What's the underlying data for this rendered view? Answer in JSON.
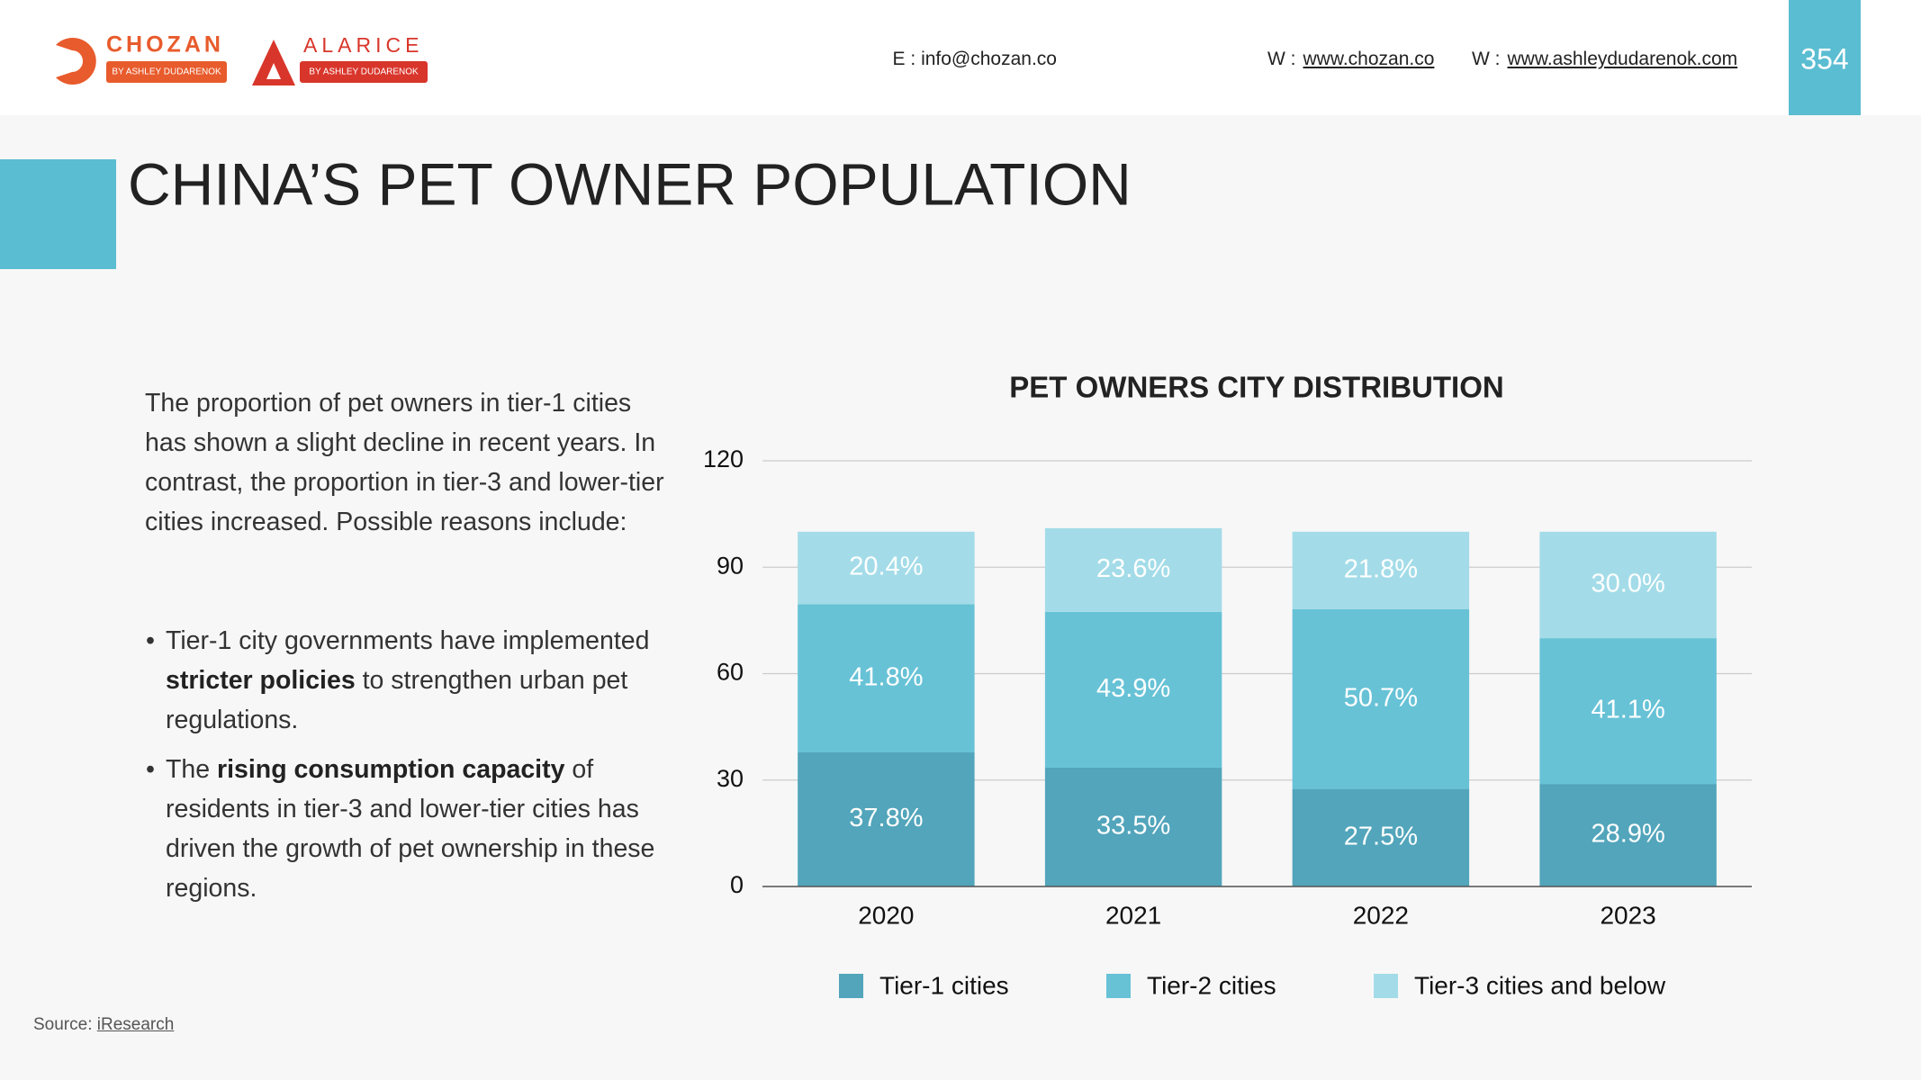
{
  "header": {
    "logos": [
      {
        "name": "CHOZAN",
        "tagline": "BY ASHLEY DUDARENOK"
      },
      {
        "name": "ALARICE",
        "tagline": "BY ASHLEY DUDARENOK"
      }
    ],
    "contacts": [
      {
        "label": "E :",
        "value": "info@chozan.co"
      },
      {
        "label": "W :",
        "value": "www.chozan.co"
      },
      {
        "label": "W :",
        "value": "www.ashleydudarenok.com"
      }
    ],
    "page_number": "354"
  },
  "title": "CHINA’S PET OWNER POPULATION",
  "body": {
    "intro": "The proportion of pet owners in tier-1 cities has shown a slight decline in recent years. In contrast, the proportion in tier-3 and lower-tier cities increased. Possible reasons include:",
    "bullets": [
      [
        {
          "text": "Tier-1 city governments have implemented "
        },
        {
          "text": "stricter policies",
          "bold": true
        },
        {
          "text": " to strengthen urban pet regulations."
        }
      ],
      [
        {
          "text": "The "
        },
        {
          "text": "rising consumption capacity",
          "bold": true
        },
        {
          "text": " of residents in tier-3 and lower-tier cities has driven the growth of pet ownership in these regions."
        }
      ]
    ]
  },
  "source": {
    "label": "Source:",
    "value": "iResearch"
  },
  "chart_data": {
    "type": "stacked_bar",
    "title": "PET OWNERS CITY DISTRIBUTION",
    "categories": [
      "2020",
      "2021",
      "2022",
      "2023"
    ],
    "series": [
      {
        "name": "Tier-1 cities",
        "color": "#52a5bb",
        "values": [
          37.8,
          33.5,
          27.5,
          28.9
        ],
        "value_labels": [
          "37.8%",
          "33.5%",
          "27.5%",
          "28.9%"
        ]
      },
      {
        "name": "Tier-2 cities",
        "color": "#67c2d6",
        "values": [
          41.8,
          43.9,
          50.7,
          41.1
        ],
        "value_labels": [
          "41.8%",
          "43.9%",
          "50.7%",
          "41.1%"
        ]
      },
      {
        "name": "Tier-3 cities and below",
        "color": "#a3dce8",
        "values": [
          20.4,
          23.6,
          21.8,
          30.0
        ],
        "value_labels": [
          "20.4%",
          "23.6%",
          "21.8%",
          "30.0%"
        ]
      }
    ],
    "ylim": [
      0,
      120
    ],
    "yticks": [
      0,
      30,
      60,
      90,
      120
    ],
    "grid": true,
    "legend": "bottom"
  }
}
